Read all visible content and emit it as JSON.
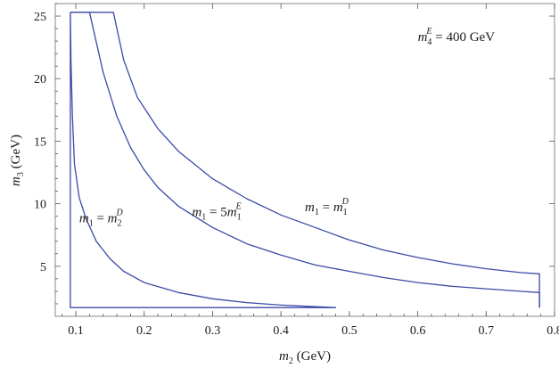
{
  "chart_data": {
    "type": "line",
    "x_axis": {
      "range": [
        0.07,
        0.8
      ],
      "ticks": [
        0.1,
        0.2,
        0.3,
        0.4,
        0.5,
        0.6,
        0.7,
        0.8
      ],
      "tick_labels": [
        "0.1",
        "0.2",
        "0.3",
        "0.4",
        "0.5",
        "0.6",
        "0.7",
        "0.8"
      ]
    },
    "y_axis": {
      "range": [
        1.0,
        26.0
      ],
      "ticks": [
        5,
        10,
        15,
        20,
        25
      ],
      "tick_labels": [
        "5",
        "10",
        "15",
        "20",
        "25"
      ]
    },
    "xlabel": {
      "var": "m",
      "sub": "2",
      "unit": " (GeV)"
    },
    "ylabel": {
      "var": "m",
      "sub": "3",
      "unit": " (GeV)"
    },
    "annotation": {
      "var": "m",
      "sub": "4",
      "sup": "E",
      "text": " = 400 GeV",
      "x": 0.6,
      "y": 23.0
    },
    "grid": false,
    "series": [
      {
        "name": "m1 = m2^D",
        "label": {
          "lhs_var": "m",
          "lhs_sub": "1",
          "eq": " = ",
          "rhs_coef": "",
          "rhs_var": "m",
          "rhs_sub": "2",
          "rhs_sup": "D",
          "x": 0.105,
          "y": 8.5
        },
        "points": [
          [
            0.092,
            25.3
          ],
          [
            0.092,
            1.7
          ],
          [
            0.48,
            1.7
          ],
          [
            0.44,
            1.8
          ],
          [
            0.4,
            1.9
          ],
          [
            0.35,
            2.1
          ],
          [
            0.3,
            2.4
          ],
          [
            0.25,
            2.9
          ],
          [
            0.2,
            3.7
          ],
          [
            0.17,
            4.6
          ],
          [
            0.15,
            5.6
          ],
          [
            0.13,
            7.0
          ],
          [
            0.115,
            8.8
          ],
          [
            0.105,
            10.5
          ],
          [
            0.098,
            13.2
          ],
          [
            0.095,
            17.0
          ],
          [
            0.093,
            21.5
          ],
          [
            0.092,
            25.3
          ]
        ]
      },
      {
        "name": "m1 = 5m1^E",
        "label": {
          "lhs_var": "m",
          "lhs_sub": "1",
          "eq": " = ",
          "rhs_coef": "5",
          "rhs_var": "m",
          "rhs_sub": "1",
          "rhs_sup": "E",
          "x": 0.27,
          "y": 9.0
        },
        "points": [
          [
            0.092,
            25.3
          ],
          [
            0.12,
            25.3
          ],
          [
            0.14,
            20.5
          ],
          [
            0.16,
            17.0
          ],
          [
            0.18,
            14.5
          ],
          [
            0.2,
            12.7
          ],
          [
            0.22,
            11.3
          ],
          [
            0.25,
            9.8
          ],
          [
            0.3,
            8.1
          ],
          [
            0.35,
            6.8
          ],
          [
            0.4,
            5.9
          ],
          [
            0.45,
            5.1
          ],
          [
            0.5,
            4.6
          ],
          [
            0.55,
            4.1
          ],
          [
            0.6,
            3.7
          ],
          [
            0.65,
            3.4
          ],
          [
            0.7,
            3.2
          ],
          [
            0.75,
            3.0
          ],
          [
            0.778,
            2.9
          ],
          [
            0.778,
            1.7
          ]
        ]
      },
      {
        "name": "m1 = m1^D",
        "label": {
          "lhs_var": "m",
          "lhs_sub": "1",
          "eq": " = ",
          "rhs_coef": "",
          "rhs_var": "m",
          "rhs_sub": "1",
          "rhs_sup": "D",
          "x": 0.435,
          "y": 9.4
        },
        "points": [
          [
            0.092,
            25.3
          ],
          [
            0.155,
            25.3
          ],
          [
            0.17,
            21.5
          ],
          [
            0.19,
            18.5
          ],
          [
            0.22,
            16.0
          ],
          [
            0.25,
            14.2
          ],
          [
            0.3,
            12.0
          ],
          [
            0.35,
            10.4
          ],
          [
            0.4,
            9.1
          ],
          [
            0.45,
            8.1
          ],
          [
            0.5,
            7.1
          ],
          [
            0.55,
            6.3
          ],
          [
            0.6,
            5.7
          ],
          [
            0.65,
            5.2
          ],
          [
            0.7,
            4.8
          ],
          [
            0.75,
            4.5
          ],
          [
            0.778,
            4.4
          ],
          [
            0.778,
            1.7
          ]
        ]
      }
    ],
    "line_color": "#3b4ba6"
  }
}
